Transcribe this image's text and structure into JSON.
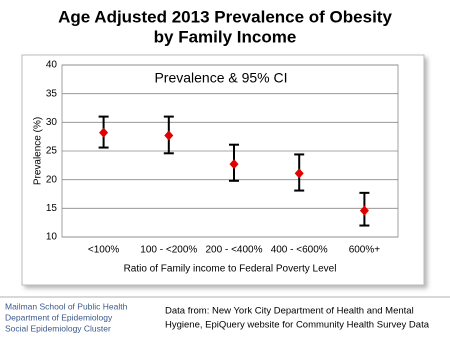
{
  "chart_data": {
    "type": "errorbar",
    "title": [
      "Age Adjusted 2013 Prevalence of Obesity",
      "by Family Income"
    ],
    "annotation": "Prevalence & 95% CI",
    "ylabel": "Prevalence (%)",
    "xlabel": "Ratio of Family income to Federal Poverty Level",
    "categories": [
      "<100%",
      "100 - <200%",
      "200 - <400%",
      "400 - <600%",
      "600%+"
    ],
    "values": [
      28.2,
      27.7,
      22.7,
      21.1,
      14.6
    ],
    "lower": [
      25.6,
      24.6,
      19.8,
      18.1,
      12.0
    ],
    "upper": [
      31.0,
      31.0,
      26.1,
      24.4,
      17.7
    ],
    "color": "#e00000",
    "error_color": "#000000",
    "ylim": [
      10,
      40
    ],
    "yticks": [
      10,
      15,
      20,
      25,
      30,
      35,
      40
    ],
    "grid": true
  },
  "footer": {
    "affiliation": [
      "Mailman School of Public Health",
      "Department of Epidemiology",
      "Social Epidemiology Cluster"
    ],
    "source": [
      "Data from: New York City Department of Health and Mental",
      "Hygiene, EpiQuery website for Community Health Survey Data"
    ]
  }
}
